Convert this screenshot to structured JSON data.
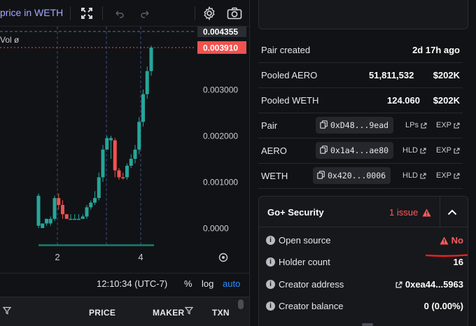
{
  "toolbar": {
    "title": "price in WETH",
    "icons": [
      "fullscreen-icon",
      "undo-icon",
      "redo-icon",
      "gear-icon",
      "camera-icon"
    ]
  },
  "chart": {
    "vol_label": "Vol ø",
    "price_labels": [
      "0.004355",
      "0.003910",
      "0.003000",
      "0.002000",
      "0.001000",
      "0.0000"
    ],
    "current_price": "0.003910",
    "top_price": "0.004355",
    "x_ticks": [
      "2",
      "4"
    ],
    "up_color": "#26a69a",
    "down_color": "#ef5350",
    "candles": [
      {
        "o": 5e-05,
        "h": 0.00075,
        "l": 0.0,
        "c": 0.0007,
        "dir": "up"
      },
      {
        "o": 0.0,
        "h": 0.0001,
        "l": 0.0,
        "c": 0.0001,
        "dir": "up"
      },
      {
        "o": 0.0001,
        "h": 0.0002,
        "l": 5e-05,
        "c": 0.0002,
        "dir": "up"
      },
      {
        "o": 0.0001,
        "h": 0.00025,
        "l": 5e-05,
        "c": 0.0002,
        "dir": "up"
      },
      {
        "o": 0.0002,
        "h": 0.0007,
        "l": 0.00015,
        "c": 0.00065,
        "dir": "up"
      },
      {
        "o": 0.00065,
        "h": 0.00075,
        "l": 0.0004,
        "c": 0.0005,
        "dir": "down"
      },
      {
        "o": 0.0005,
        "h": 0.0006,
        "l": 0.0002,
        "c": 0.0003,
        "dir": "down"
      },
      {
        "o": 0.0003,
        "h": 0.0003,
        "l": 0.0002,
        "c": 0.0002,
        "dir": "down"
      },
      {
        "o": 0.0002,
        "h": 0.0003,
        "l": 0.0002,
        "c": 0.0002,
        "dir": "up"
      },
      {
        "o": 0.0002,
        "h": 0.0003,
        "l": 0.0002,
        "c": 0.0002,
        "dir": "up"
      },
      {
        "o": 0.0002,
        "h": 0.0003,
        "l": 0.0002,
        "c": 0.0002,
        "dir": "up"
      },
      {
        "o": 0.0002,
        "h": 0.0003,
        "l": 0.0002,
        "c": 0.00025,
        "dir": "up"
      },
      {
        "o": 0.00025,
        "h": 0.0005,
        "l": 0.0002,
        "c": 0.00045,
        "dir": "up"
      },
      {
        "o": 0.00045,
        "h": 0.0006,
        "l": 0.0004,
        "c": 0.00055,
        "dir": "up"
      },
      {
        "o": 0.00055,
        "h": 0.0008,
        "l": 0.0005,
        "c": 0.00065,
        "dir": "up"
      },
      {
        "o": 0.00065,
        "h": 0.0012,
        "l": 0.0006,
        "c": 0.0011,
        "dir": "up"
      },
      {
        "o": 0.0011,
        "h": 0.0018,
        "l": 0.001,
        "c": 0.0017,
        "dir": "up"
      },
      {
        "o": 0.0017,
        "h": 0.002,
        "l": 0.0017,
        "c": 0.00195,
        "dir": "up"
      },
      {
        "o": 0.00195,
        "h": 0.002,
        "l": 0.0015,
        "c": 0.0019,
        "dir": "up"
      },
      {
        "o": 0.0019,
        "h": 0.00195,
        "l": 0.0011,
        "c": 0.00125,
        "dir": "down"
      },
      {
        "o": 0.00125,
        "h": 0.0013,
        "l": 0.00105,
        "c": 0.0011,
        "dir": "down"
      },
      {
        "o": 0.0011,
        "h": 0.0012,
        "l": 0.00105,
        "c": 0.0011,
        "dir": "down"
      },
      {
        "o": 0.0011,
        "h": 0.0014,
        "l": 0.00105,
        "c": 0.00135,
        "dir": "up"
      },
      {
        "o": 0.00135,
        "h": 0.0016,
        "l": 0.0013,
        "c": 0.0015,
        "dir": "up"
      },
      {
        "o": 0.0015,
        "h": 0.0018,
        "l": 0.0014,
        "c": 0.0017,
        "dir": "up"
      },
      {
        "o": 0.0017,
        "h": 0.0024,
        "l": 0.0016,
        "c": 0.0023,
        "dir": "up"
      },
      {
        "o": 0.0023,
        "h": 0.003,
        "l": 0.0022,
        "c": 0.0029,
        "dir": "up"
      },
      {
        "o": 0.0029,
        "h": 0.0035,
        "l": 0.0028,
        "c": 0.0034,
        "dir": "up"
      },
      {
        "o": 0.0034,
        "h": 0.00395,
        "l": 0.0033,
        "c": 0.00391,
        "dir": "up"
      }
    ]
  },
  "footer": {
    "time": "12:10:34 (UTC-7)",
    "percent": "%",
    "log": "log",
    "auto": "auto"
  },
  "trades_header": {
    "price": "PRICE",
    "maker": "MAKER",
    "txn": "TXN"
  },
  "info": {
    "pair_created_label": "Pair created",
    "pair_created_value": "2d 17h ago",
    "pooled_aero_label": "Pooled AERO",
    "pooled_aero_amount": "51,811,532",
    "pooled_aero_usd": "$202K",
    "pooled_weth_label": "Pooled WETH",
    "pooled_weth_amount": "124.060",
    "pooled_weth_usd": "$202K",
    "pair_label": "Pair",
    "pair_addr": "0xD48...9ead",
    "pair_link1": "LPs",
    "pair_link2": "EXP",
    "aero_label": "AERO",
    "aero_addr": "0x1a4...ae80",
    "aero_link1": "HLD",
    "aero_link2": "EXP",
    "weth_label": "WETH",
    "weth_addr": "0x420...0006",
    "weth_link1": "HLD",
    "weth_link2": "EXP"
  },
  "security": {
    "title": "Go+ Security",
    "issue": "1 issue",
    "rows": [
      {
        "label": "Open source",
        "value": "No"
      },
      {
        "label": "Holder count",
        "value": "16"
      },
      {
        "label": "Creator address",
        "value": "0xea44...5963"
      },
      {
        "label": "Creator balance",
        "value": "0 (0.00%)"
      }
    ]
  }
}
